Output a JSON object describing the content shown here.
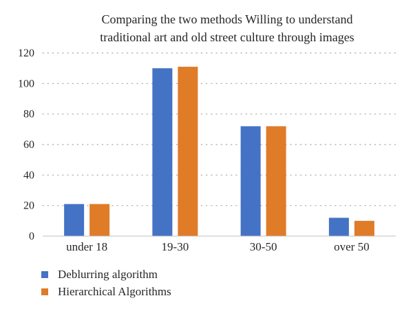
{
  "chart_data": {
    "type": "bar",
    "title_lines": [
      "Comparing the two methods Willing to understand",
      "traditional art and old street culture through images"
    ],
    "categories": [
      "under 18",
      "19-30",
      "30-50",
      "over 50"
    ],
    "series": [
      {
        "name": "Deblurring algorithm",
        "color": "#4472C4",
        "values": [
          21,
          110,
          72,
          12
        ]
      },
      {
        "name": "Hierarchical Algorithms",
        "color": "#E07B28",
        "values": [
          21,
          111,
          72,
          10
        ]
      }
    ],
    "ylim": [
      0,
      120
    ],
    "yticks": [
      0,
      20,
      40,
      60,
      80,
      100,
      120
    ],
    "grid": true,
    "legend_position": "bottom-left"
  }
}
